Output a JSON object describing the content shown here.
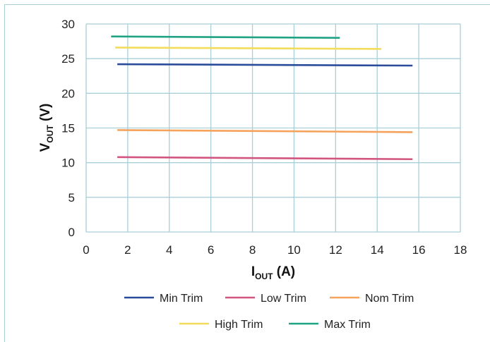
{
  "chart_data": {
    "type": "line",
    "title": "",
    "xlabel": {
      "main": "I",
      "sub": "OUT",
      "unit": " (A)"
    },
    "ylabel": {
      "main": "V",
      "sub": "OUT",
      "unit": " (V)"
    },
    "xlim": [
      0,
      18
    ],
    "ylim": [
      0,
      30
    ],
    "xticks": [
      0,
      2,
      4,
      6,
      8,
      10,
      12,
      14,
      16,
      18
    ],
    "yticks": [
      0,
      5,
      10,
      15,
      20,
      25,
      30
    ],
    "grid": true,
    "legend_position": "bottom",
    "series": [
      {
        "name": "Min Trim",
        "color": "#2b4c9b",
        "x": [
          1.5,
          15.7
        ],
        "y": [
          24.2,
          24.0
        ]
      },
      {
        "name": "Low Trim",
        "color": "#d2557f",
        "x": [
          1.5,
          15.7
        ],
        "y": [
          10.8,
          10.5
        ]
      },
      {
        "name": "Nom Trim",
        "color": "#f5a25d",
        "x": [
          1.5,
          15.7
        ],
        "y": [
          14.7,
          14.4
        ]
      },
      {
        "name": "High Trim",
        "color": "#f3dc5a",
        "x": [
          1.4,
          14.2
        ],
        "y": [
          26.6,
          26.4
        ]
      },
      {
        "name": "Max Trim",
        "color": "#1fa383",
        "x": [
          1.2,
          12.2
        ],
        "y": [
          28.2,
          28.0
        ]
      }
    ]
  }
}
